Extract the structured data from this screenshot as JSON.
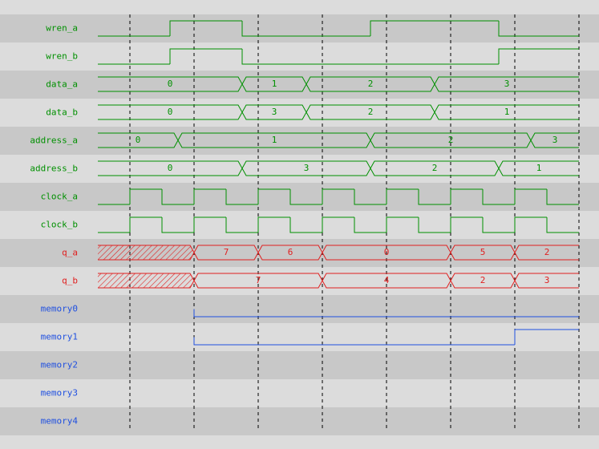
{
  "signals": [
    {
      "name": "wren_a",
      "kind": "bit",
      "color": "#009000",
      "edges": [
        0,
        2.25,
        4.5,
        8.5,
        12.5
      ],
      "levels": [
        0,
        1,
        0,
        1,
        0
      ]
    },
    {
      "name": "wren_b",
      "kind": "bit",
      "color": "#009000",
      "edges": [
        0,
        2.25,
        4.5,
        12.5
      ],
      "levels": [
        0,
        1,
        0,
        1
      ]
    },
    {
      "name": "data_a",
      "kind": "bus",
      "color": "#009000",
      "edges": [
        0,
        4.5,
        6.5,
        10.5
      ],
      "values": [
        "0",
        "1",
        "2",
        "3"
      ]
    },
    {
      "name": "data_b",
      "kind": "bus",
      "color": "#009000",
      "edges": [
        0,
        4.5,
        6.5,
        10.5
      ],
      "values": [
        "0",
        "3",
        "2",
        "1"
      ]
    },
    {
      "name": "address_a",
      "kind": "bus",
      "color": "#009000",
      "edges": [
        0,
        2.5,
        8.5,
        13.5
      ],
      "values": [
        "0",
        "1",
        "2",
        "3"
      ]
    },
    {
      "name": "address_b",
      "kind": "bus",
      "color": "#009000",
      "edges": [
        0,
        4.5,
        8.5,
        12.5
      ],
      "values": [
        "0",
        "3",
        "2",
        "1"
      ]
    },
    {
      "name": "clock_a",
      "kind": "bit",
      "color": "#009000",
      "edges": [
        0,
        1,
        2,
        3,
        4,
        5,
        6,
        7,
        8,
        9,
        10,
        11,
        12,
        13,
        14
      ],
      "levels": [
        0,
        1,
        0,
        1,
        0,
        1,
        0,
        1,
        0,
        1,
        0,
        1,
        0,
        1,
        0
      ]
    },
    {
      "name": "clock_b",
      "kind": "bit",
      "color": "#009000",
      "edges": [
        0,
        1,
        2,
        3,
        4,
        5,
        6,
        7,
        8,
        9,
        10,
        11,
        12,
        13,
        14
      ],
      "levels": [
        0,
        1,
        0,
        1,
        0,
        1,
        0,
        1,
        0,
        1,
        0,
        1,
        0,
        1,
        0
      ]
    },
    {
      "name": "q_a",
      "kind": "bus",
      "color": "#e02020",
      "edges": [
        0,
        3,
        5,
        7,
        11,
        13
      ],
      "values": [
        null,
        "7",
        "6",
        "0",
        "5",
        "2"
      ]
    },
    {
      "name": "q_b",
      "kind": "bus",
      "color": "#e02020",
      "edges": [
        0,
        3,
        7,
        11,
        13
      ],
      "values": [
        null,
        "7",
        "4",
        "2",
        "3"
      ]
    },
    {
      "name": "memory0",
      "kind": "bit",
      "color": "#2050e0",
      "edges": [
        3
      ],
      "levels": [
        0
      ]
    },
    {
      "name": "memory1",
      "kind": "bit",
      "color": "#2050e0",
      "edges": [
        3,
        13
      ],
      "levels": [
        0,
        1
      ]
    },
    {
      "name": "memory2",
      "kind": "bit",
      "color": "#2050e0",
      "edges": [],
      "levels": []
    },
    {
      "name": "memory3",
      "kind": "bit",
      "color": "#2050e0",
      "edges": [],
      "levels": []
    },
    {
      "name": "memory4",
      "kind": "bit",
      "color": "#2050e0",
      "edges": [],
      "levels": []
    }
  ]
}
